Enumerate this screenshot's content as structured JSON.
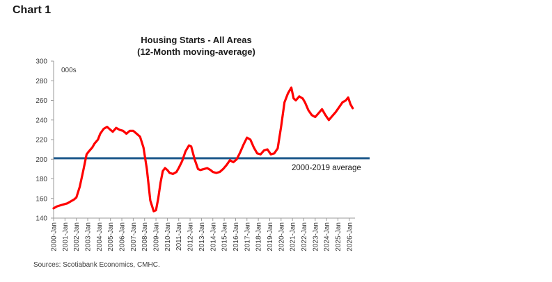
{
  "header": {
    "chart_label": "Chart 1"
  },
  "footer": {
    "source": "Sources: Scotiabank Economics, CMHC."
  },
  "colors": {
    "series": "#ff0000",
    "average_line": "#1f5a8c",
    "axis": "#9a9a9a"
  },
  "chart_data": {
    "type": "line",
    "title": "Housing Starts - All Areas",
    "subtitle": "(12-Month moving-average)",
    "unit_label": "000s",
    "ylim": [
      140,
      300
    ],
    "yticks": [
      140,
      160,
      180,
      200,
      220,
      240,
      260,
      280,
      300
    ],
    "xlim": [
      2000.0,
      2026.5
    ],
    "xticks": [
      "2000-Jan",
      "2001-Jan",
      "2002-Jan",
      "2003-Jan",
      "2004-Jan",
      "2005-Jan",
      "2006-Jan",
      "2007-Jan",
      "2008-Jan",
      "2009-Jan",
      "2010-Jan",
      "2011-Jan",
      "2012-Jan",
      "2013-Jan",
      "2014-Jan",
      "2015-Jan",
      "2016-Jan",
      "2017-Jan",
      "2018-Jan",
      "2019-Jan",
      "2020-Jan",
      "2021-Jan",
      "2022-Jan",
      "2023-Jan",
      "2024-Jan",
      "2025-Jan",
      "2026-Jan"
    ],
    "reference_line": {
      "label": "2000-2019 average",
      "value": 201
    },
    "series": [
      {
        "x": [
          2000.0,
          2000.3,
          2000.6,
          2000.9,
          2001.2,
          2001.5,
          2001.8,
          2002.0,
          2002.3,
          2002.6,
          2002.9,
          2003.1,
          2003.4,
          2003.6,
          2003.9,
          2004.1,
          2004.4,
          2004.7,
          2005.0,
          2005.2,
          2005.5,
          2005.8,
          2006.1,
          2006.4,
          2006.7,
          2007.0,
          2007.3,
          2007.6,
          2007.9,
          2008.2,
          2008.5,
          2008.8,
          2009.0,
          2009.2,
          2009.4,
          2009.6,
          2009.8,
          2010.0,
          2010.2,
          2010.5,
          2010.8,
          2011.0,
          2011.3,
          2011.6,
          2011.9,
          2012.1,
          2012.4,
          2012.7,
          2012.9,
          2013.2,
          2013.5,
          2013.8,
          2014.0,
          2014.3,
          2014.6,
          2014.9,
          2015.2,
          2015.5,
          2015.8,
          2016.1,
          2016.4,
          2016.7,
          2017.0,
          2017.3,
          2017.6,
          2017.9,
          2018.2,
          2018.5,
          2018.8,
          2019.1,
          2019.4,
          2019.7,
          2020.0,
          2020.3,
          2020.6,
          2020.9,
          2021.1,
          2021.3,
          2021.6,
          2021.9,
          2022.1,
          2022.4,
          2022.7,
          2023.0,
          2023.3,
          2023.6,
          2023.9,
          2024.2,
          2024.5,
          2024.8,
          2025.1,
          2025.4,
          2025.7,
          2025.9,
          2026.1,
          2026.3
        ],
        "y": [
          150,
          152,
          153,
          154,
          155,
          157,
          159,
          161,
          172,
          188,
          205,
          208,
          212,
          216,
          220,
          226,
          231,
          233,
          230,
          228,
          232,
          230,
          229,
          226,
          229,
          229,
          226,
          223,
          212,
          190,
          158,
          147,
          148,
          160,
          176,
          188,
          191,
          189,
          186,
          185,
          187,
          191,
          198,
          208,
          214,
          213,
          200,
          190,
          189,
          190,
          191,
          189,
          187,
          186,
          187,
          190,
          194,
          199,
          197,
          200,
          207,
          215,
          222,
          220,
          212,
          206,
          205,
          209,
          210,
          205,
          206,
          211,
          233,
          258,
          267,
          273,
          262,
          260,
          264,
          262,
          258,
          250,
          245,
          243,
          247,
          251,
          245,
          240,
          244,
          248,
          253,
          258,
          260,
          263,
          256,
          252
        ]
      }
    ]
  }
}
